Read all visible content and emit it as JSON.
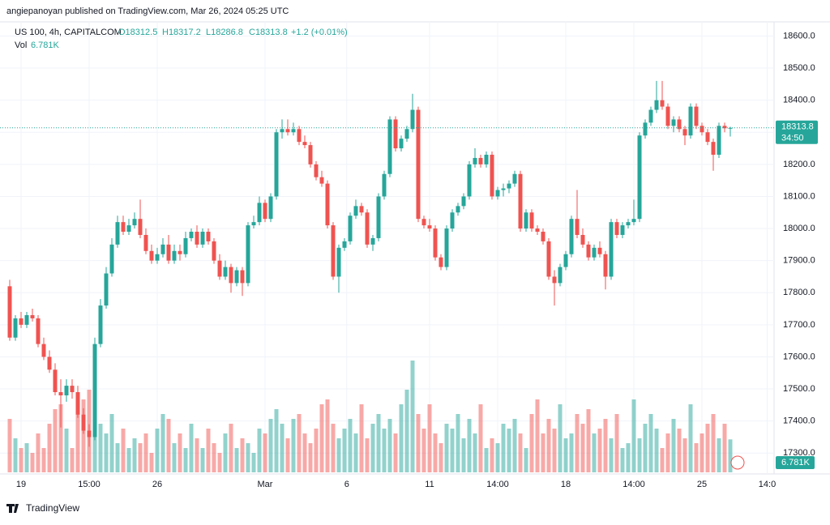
{
  "header": {
    "published": "angiepanoyan published on TradingView.com, Mar 26, 2024 05:25 UTC",
    "symbol": "US 100, 4h, CAPITALCOM",
    "open": "O18312.5",
    "high": "H18317.2",
    "low": "L18286.8",
    "close": "C18313.8",
    "change": "+1.2 (+0.01%)",
    "vol_name": "Vol",
    "vol_value": "6.781K"
  },
  "footer": {
    "brand": "TradingView"
  },
  "chart_data": {
    "type": "candlestick",
    "up_color": "#26a69a",
    "down_color": "#ef5350",
    "ylim": [
      17235,
      18620
    ],
    "yticks": [
      {
        "value": 17300,
        "label": "17300.0"
      },
      {
        "value": 17400,
        "label": "17400.0"
      },
      {
        "value": 17500,
        "label": "17500.0"
      },
      {
        "value": 17600,
        "label": "17600.0"
      },
      {
        "value": 17700,
        "label": "17700.0"
      },
      {
        "value": 17800,
        "label": "17800.0"
      },
      {
        "value": 17900,
        "label": "17900.0"
      },
      {
        "value": 18000,
        "label": "18000.0"
      },
      {
        "value": 18100,
        "label": "18100.0"
      },
      {
        "value": 18200,
        "label": "18200.0"
      },
      {
        "value": 18300,
        "label": "18300.0"
      },
      {
        "value": 18400,
        "label": "18400.0"
      },
      {
        "value": 18500,
        "label": "18500.0"
      },
      {
        "value": 18600,
        "label": "18600.0"
      }
    ],
    "xticks": [
      {
        "value": 2,
        "label": "19"
      },
      {
        "value": 14,
        "label": "15:00"
      },
      {
        "value": 26,
        "label": "26"
      },
      {
        "value": 45,
        "label": "Mar"
      },
      {
        "value": 59.4,
        "label": "6"
      },
      {
        "value": 74,
        "label": "11"
      },
      {
        "value": 86,
        "label": "14:00"
      },
      {
        "value": 98,
        "label": "18"
      },
      {
        "value": 110,
        "label": "14:00"
      },
      {
        "value": 122,
        "label": "25"
      },
      {
        "value": 133.5,
        "label": "14:0"
      }
    ],
    "last_price": 18313.8,
    "countdown": "34:50",
    "volume_last_label": "6.781K",
    "volume_lim": [
      0,
      25
    ],
    "ohlc": [
      [
        17820,
        17840,
        17650,
        17660
      ],
      [
        17660,
        17730,
        17650,
        17720
      ],
      [
        17720,
        17740,
        17690,
        17700
      ],
      [
        17700,
        17740,
        17690,
        17730
      ],
      [
        17730,
        17750,
        17710,
        17720
      ],
      [
        17720,
        17730,
        17630,
        17640
      ],
      [
        17640,
        17660,
        17590,
        17600
      ],
      [
        17600,
        17620,
        17550,
        17560
      ],
      [
        17560,
        17580,
        17480,
        17490
      ],
      [
        17490,
        17530,
        17380,
        17480
      ],
      [
        17480,
        17530,
        17460,
        17510
      ],
      [
        17510,
        17530,
        17470,
        17490
      ],
      [
        17490,
        17510,
        17410,
        17420
      ],
      [
        17420,
        17440,
        17360,
        17370
      ],
      [
        17370,
        17390,
        17320,
        17350
      ],
      [
        17350,
        17660,
        17340,
        17640
      ],
      [
        17640,
        17780,
        17630,
        17760
      ],
      [
        17760,
        17880,
        17750,
        17860
      ],
      [
        17860,
        17970,
        17850,
        17950
      ],
      [
        17950,
        18040,
        17940,
        18020
      ],
      [
        18020,
        18040,
        17980,
        17990
      ],
      [
        17990,
        18030,
        17980,
        18010
      ],
      [
        18010,
        18050,
        18000,
        18030
      ],
      [
        18030,
        18090,
        17970,
        17980
      ],
      [
        17980,
        18000,
        17920,
        17930
      ],
      [
        17930,
        17950,
        17890,
        17900
      ],
      [
        17900,
        17940,
        17890,
        17920
      ],
      [
        17920,
        17970,
        17910,
        17950
      ],
      [
        17950,
        17980,
        17890,
        17900
      ],
      [
        17900,
        17950,
        17890,
        17930
      ],
      [
        17930,
        17950,
        17900,
        17920
      ],
      [
        17920,
        17990,
        17910,
        17970
      ],
      [
        17970,
        18000,
        17960,
        17990
      ],
      [
        17990,
        18010,
        17940,
        17950
      ],
      [
        17950,
        18000,
        17940,
        17990
      ],
      [
        17990,
        18000,
        17950,
        17960
      ],
      [
        17960,
        17970,
        17890,
        17900
      ],
      [
        17900,
        17920,
        17840,
        17850
      ],
      [
        17850,
        17900,
        17840,
        17880
      ],
      [
        17880,
        17890,
        17800,
        17830
      ],
      [
        17830,
        17880,
        17820,
        17870
      ],
      [
        17870,
        17880,
        17790,
        17830
      ],
      [
        17830,
        18020,
        17820,
        18010
      ],
      [
        18010,
        18040,
        18000,
        18020
      ],
      [
        18020,
        18100,
        18010,
        18080
      ],
      [
        18080,
        18090,
        18020,
        18030
      ],
      [
        18030,
        18110,
        18020,
        18100
      ],
      [
        18100,
        18310,
        18090,
        18300
      ],
      [
        18300,
        18340,
        18280,
        18310
      ],
      [
        18310,
        18340,
        18290,
        18300
      ],
      [
        18300,
        18330,
        18290,
        18310
      ],
      [
        18310,
        18320,
        18260,
        18270
      ],
      [
        18270,
        18290,
        18250,
        18260
      ],
      [
        18260,
        18270,
        18190,
        18200
      ],
      [
        18200,
        18210,
        18150,
        18160
      ],
      [
        18160,
        18180,
        18130,
        18140
      ],
      [
        18140,
        18150,
        18000,
        18010
      ],
      [
        18010,
        18020,
        17840,
        17850
      ],
      [
        17850,
        17950,
        17800,
        17940
      ],
      [
        17940,
        17970,
        17930,
        17960
      ],
      [
        17960,
        18050,
        17950,
        18040
      ],
      [
        18040,
        18090,
        18030,
        18070
      ],
      [
        18070,
        18080,
        18040,
        18050
      ],
      [
        18050,
        18060,
        17940,
        17950
      ],
      [
        17950,
        17980,
        17930,
        17970
      ],
      [
        17970,
        18110,
        17960,
        18100
      ],
      [
        18100,
        18180,
        18090,
        18170
      ],
      [
        18170,
        18350,
        18160,
        18340
      ],
      [
        18340,
        18350,
        18240,
        18250
      ],
      [
        18250,
        18290,
        18240,
        18280
      ],
      [
        18280,
        18320,
        18270,
        18310
      ],
      [
        18310,
        18420,
        18300,
        18370
      ],
      [
        18370,
        18380,
        18020,
        18030
      ],
      [
        18030,
        18040,
        18000,
        18010
      ],
      [
        18010,
        18030,
        17990,
        18000
      ],
      [
        18000,
        18010,
        17900,
        17910
      ],
      [
        17910,
        17920,
        17870,
        17880
      ],
      [
        17880,
        18010,
        17870,
        18000
      ],
      [
        18000,
        18060,
        17990,
        18050
      ],
      [
        18050,
        18080,
        18040,
        18070
      ],
      [
        18070,
        18110,
        18060,
        18100
      ],
      [
        18100,
        18210,
        18090,
        18200
      ],
      [
        18200,
        18250,
        18190,
        18220
      ],
      [
        18220,
        18230,
        18190,
        18200
      ],
      [
        18200,
        18240,
        18190,
        18230
      ],
      [
        18230,
        18240,
        18090,
        18100
      ],
      [
        18100,
        18130,
        18090,
        18120
      ],
      [
        18120,
        18140,
        18100,
        18125
      ],
      [
        18125,
        18150,
        18110,
        18140
      ],
      [
        18140,
        18180,
        18130,
        18170
      ],
      [
        18170,
        18180,
        17990,
        18000
      ],
      [
        18000,
        18060,
        17990,
        18050
      ],
      [
        18050,
        18060,
        17990,
        18000
      ],
      [
        18000,
        18010,
        17980,
        17990
      ],
      [
        17990,
        18000,
        17950,
        17960
      ],
      [
        17960,
        17970,
        17840,
        17850
      ],
      [
        17850,
        17870,
        17760,
        17830
      ],
      [
        17830,
        17890,
        17820,
        17880
      ],
      [
        17880,
        17930,
        17870,
        17920
      ],
      [
        17920,
        18040,
        17910,
        18030
      ],
      [
        18030,
        18120,
        17970,
        17980
      ],
      [
        17980,
        18000,
        17940,
        17950
      ],
      [
        17950,
        17960,
        17900,
        17910
      ],
      [
        17910,
        17950,
        17900,
        17940
      ],
      [
        17940,
        17960,
        17910,
        17920
      ],
      [
        17920,
        17930,
        17810,
        17850
      ],
      [
        17850,
        18030,
        17840,
        18020
      ],
      [
        18020,
        18030,
        17970,
        17980
      ],
      [
        17980,
        18020,
        17970,
        18010
      ],
      [
        18010,
        18030,
        18000,
        18020
      ],
      [
        18020,
        18090,
        18010,
        18030
      ],
      [
        18030,
        18300,
        18020,
        18290
      ],
      [
        18290,
        18340,
        18280,
        18330
      ],
      [
        18330,
        18380,
        18320,
        18370
      ],
      [
        18370,
        18460,
        18360,
        18400
      ],
      [
        18400,
        18460,
        18370,
        18380
      ],
      [
        18380,
        18390,
        18310,
        18320
      ],
      [
        18320,
        18350,
        18300,
        18340
      ],
      [
        18340,
        18350,
        18300,
        18310
      ],
      [
        18310,
        18320,
        18260,
        18290
      ],
      [
        18290,
        18390,
        18280,
        18380
      ],
      [
        18380,
        18390,
        18310,
        18320
      ],
      [
        18320,
        18330,
        18290,
        18300
      ],
      [
        18300,
        18310,
        18260,
        18270
      ],
      [
        18270,
        18280,
        18180,
        18230
      ],
      [
        18230,
        18330,
        18220,
        18320
      ],
      [
        18320,
        18330,
        18300,
        18312.5
      ],
      [
        18312.5,
        18317.2,
        18286.8,
        18313.8
      ]
    ],
    "volume": [
      11,
      7,
      5,
      6,
      4,
      8,
      5,
      10,
      13,
      14,
      9,
      5,
      12,
      15,
      17,
      20,
      10,
      8,
      12,
      6,
      9,
      5,
      7,
      6,
      8,
      4,
      9,
      12,
      11,
      6,
      8,
      5,
      10,
      7,
      5,
      9,
      6,
      4,
      8,
      10,
      5,
      7,
      6,
      4,
      9,
      8,
      11,
      13,
      10,
      7,
      11,
      12,
      8,
      6,
      9,
      14,
      15,
      10,
      7,
      9,
      11,
      8,
      14,
      7,
      10,
      12,
      9,
      11,
      8,
      14,
      17,
      23,
      12,
      9,
      14,
      8,
      6,
      10,
      9,
      12,
      7,
      11,
      8,
      14,
      5,
      7,
      6,
      10,
      9,
      11,
      8,
      5,
      12,
      15,
      8,
      11,
      9,
      14,
      7,
      8,
      12,
      10,
      13,
      8,
      9,
      11,
      7,
      12,
      5,
      6,
      15,
      7,
      10,
      12,
      9,
      5,
      8,
      11,
      9,
      7,
      14,
      6,
      8,
      10,
      12,
      7,
      10,
      6.781
    ]
  }
}
